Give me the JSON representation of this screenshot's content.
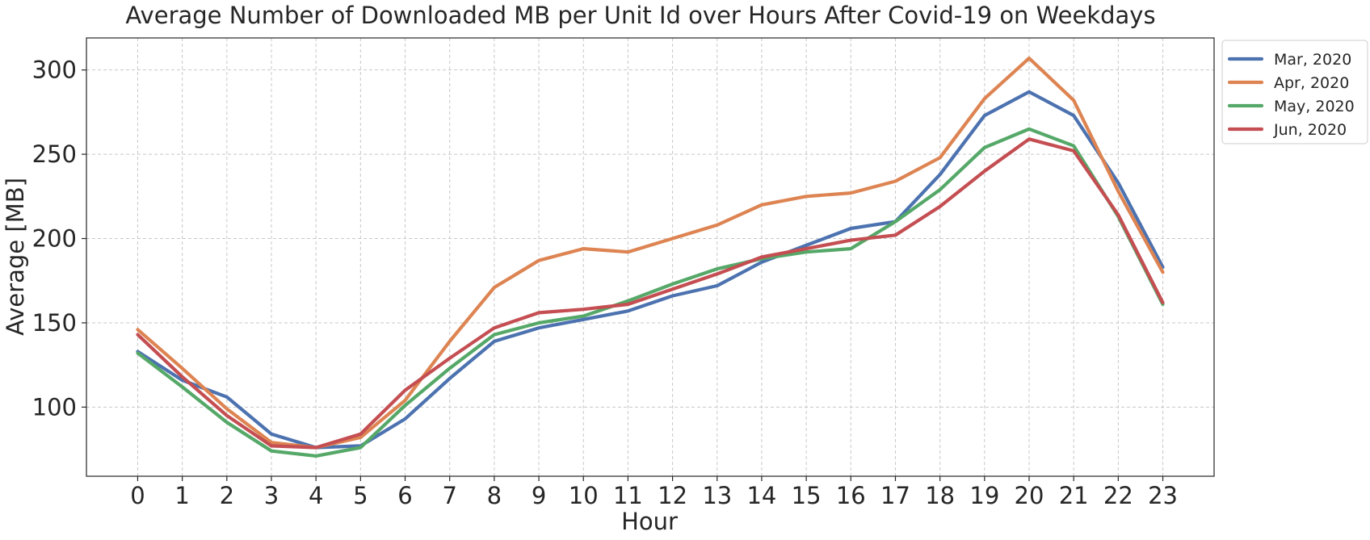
{
  "chart_data": {
    "type": "line",
    "title": "Average Number of Downloaded MB per Unit Id over Hours After Covid-19 on Weekdays",
    "xlabel": "Hour",
    "ylabel": "Average [MB]",
    "x": [
      0,
      1,
      2,
      3,
      4,
      5,
      6,
      7,
      8,
      9,
      10,
      11,
      12,
      13,
      14,
      15,
      16,
      17,
      18,
      19,
      20,
      21,
      22,
      23
    ],
    "x_ticks": [
      "0",
      "1",
      "2",
      "3",
      "4",
      "5",
      "6",
      "7",
      "8",
      "9",
      "10",
      "11",
      "12",
      "13",
      "14",
      "15",
      "16",
      "17",
      "18",
      "19",
      "20",
      "21",
      "22",
      "23"
    ],
    "y_ticks": [
      100,
      150,
      200,
      250,
      300
    ],
    "xlim": [
      -1.15,
      24.15
    ],
    "ylim": [
      59,
      319
    ],
    "grid": true,
    "legend_position": "outside-top-right",
    "series": [
      {
        "name": "Mar, 2020",
        "color": "#4c72b0",
        "values": [
          133,
          116,
          106,
          84,
          76,
          77,
          93,
          117,
          139,
          147,
          152,
          157,
          166,
          172,
          186,
          196,
          206,
          210,
          238,
          273,
          287,
          273,
          233,
          183
        ]
      },
      {
        "name": "Apr, 2020",
        "color": "#dd8452",
        "values": [
          146,
          123,
          99,
          79,
          76,
          82,
          104,
          139,
          171,
          187,
          194,
          192,
          200,
          208,
          220,
          225,
          227,
          234,
          248,
          283,
          307,
          282,
          228,
          180
        ]
      },
      {
        "name": "May, 2020",
        "color": "#55a868",
        "values": [
          132,
          112,
          91,
          74,
          71,
          76,
          101,
          123,
          143,
          150,
          154,
          163,
          173,
          182,
          188,
          192,
          194,
          210,
          229,
          254,
          265,
          255,
          213,
          161
        ]
      },
      {
        "name": "Jun, 2020",
        "color": "#c44e52",
        "values": [
          143,
          118,
          95,
          77,
          76,
          84,
          110,
          129,
          147,
          156,
          158,
          161,
          170,
          179,
          189,
          194,
          199,
          202,
          219,
          240,
          259,
          252,
          214,
          162
        ]
      }
    ]
  }
}
